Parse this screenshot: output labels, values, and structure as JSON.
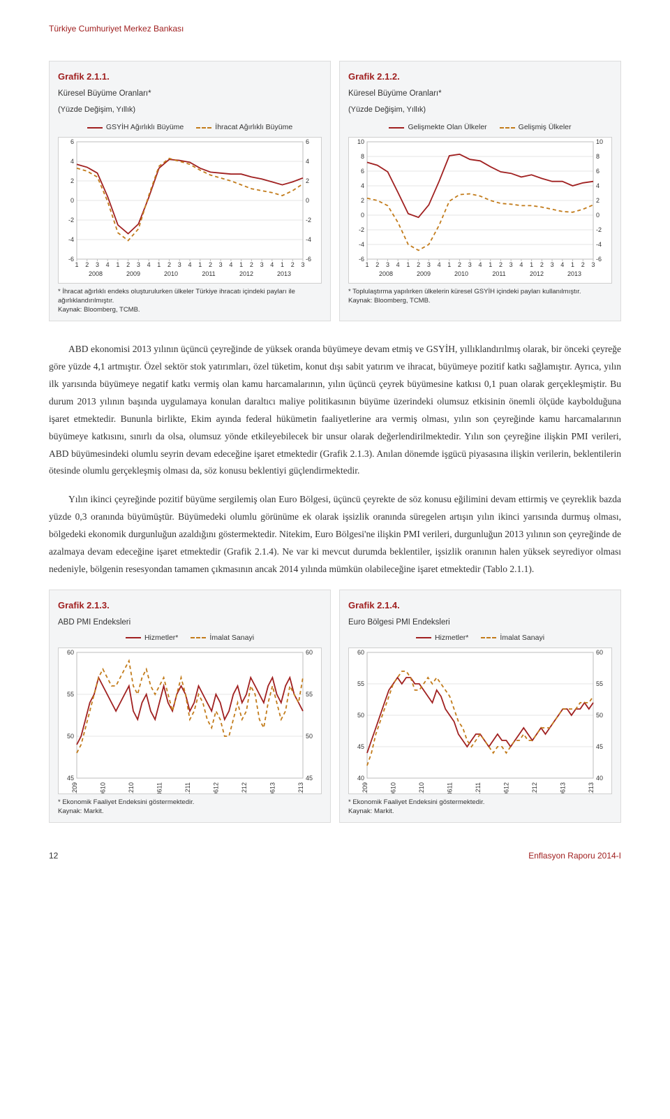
{
  "running_head": "Türkiye Cumhuriyet Merkez Bankası",
  "footer": {
    "page": "12",
    "doc": "Enflasyon Raporu 2014-I"
  },
  "chart211": {
    "type": "line",
    "title": "Grafik 2.1.1.",
    "subtitle": "Küresel Büyüme Oranları*",
    "subtitle2": "(Yüzde Değişim, Yıllık)",
    "legend": [
      {
        "label": "GSYİH Ağırlıklı Büyüme",
        "color": "#a02020",
        "dashed": false
      },
      {
        "label": "İhracat Ağırlıklı Büyüme",
        "color": "#c27b1a",
        "dashed": true
      }
    ],
    "ylim": [
      -6,
      6
    ],
    "ytick_step": 2,
    "x_labels_minor": [
      "1",
      "2",
      "3",
      "4",
      "1",
      "2",
      "3",
      "4",
      "1",
      "2",
      "3",
      "4",
      "1",
      "2",
      "3",
      "4",
      "1",
      "2",
      "3",
      "4",
      "1",
      "2",
      "3"
    ],
    "x_labels_major": [
      "2008",
      "2009",
      "2010",
      "2011",
      "2012",
      "2013"
    ],
    "series": [
      {
        "color": "#a02020",
        "dashed": false,
        "values": [
          3.7,
          3.4,
          2.8,
          0.4,
          -2.5,
          -3.4,
          -2.4,
          0.3,
          3.3,
          4.2,
          4.1,
          3.9,
          3.3,
          2.9,
          2.8,
          2.7,
          2.7,
          2.4,
          2.2,
          1.9,
          1.6,
          1.9,
          2.3
        ]
      },
      {
        "color": "#c27b1a",
        "dashed": true,
        "values": [
          3.3,
          3.0,
          2.4,
          -0.1,
          -3.3,
          -4.1,
          -2.9,
          0.5,
          3.5,
          4.3,
          4.0,
          3.7,
          3.1,
          2.6,
          2.3,
          2.0,
          1.6,
          1.2,
          1.0,
          0.8,
          0.5,
          1.0,
          1.7
        ]
      }
    ],
    "footnote": "* İhracat ağırlıklı endeks oluşturulurken ülkeler Türkiye ihracatı içindeki payları ile ağırlıklandırılmıştır.\nKaynak: Bloomberg, TCMB.",
    "background_color": "#ffffff",
    "grid_color": "#e4e4e4",
    "label_fontsize": 9
  },
  "chart212": {
    "type": "line",
    "title": "Grafik 2.1.2.",
    "subtitle": "Küresel Büyüme Oranları*",
    "subtitle2": "(Yüzde Değişim, Yıllık)",
    "legend": [
      {
        "label": "Gelişmekte Olan Ülkeler",
        "color": "#a02020",
        "dashed": false
      },
      {
        "label": "Gelişmiş Ülkeler",
        "color": "#c27b1a",
        "dashed": true
      }
    ],
    "ylim": [
      -6,
      10
    ],
    "ytick_step": 2,
    "x_labels_minor": [
      "1",
      "2",
      "3",
      "4",
      "1",
      "2",
      "3",
      "4",
      "1",
      "2",
      "3",
      "4",
      "1",
      "2",
      "3",
      "4",
      "1",
      "2",
      "3",
      "4",
      "1",
      "2",
      "3"
    ],
    "x_labels_major": [
      "2008",
      "2009",
      "2010",
      "2011",
      "2012",
      "2013"
    ],
    "series": [
      {
        "color": "#a02020",
        "dashed": false,
        "values": [
          7.2,
          6.8,
          5.9,
          3.1,
          0.2,
          -0.3,
          1.4,
          4.6,
          8.1,
          8.3,
          7.6,
          7.4,
          6.6,
          5.9,
          5.7,
          5.2,
          5.5,
          5.0,
          4.6,
          4.6,
          4.0,
          4.4,
          4.6
        ]
      },
      {
        "color": "#c27b1a",
        "dashed": true,
        "values": [
          2.3,
          2.0,
          1.3,
          -1.0,
          -4.0,
          -4.8,
          -4.0,
          -1.4,
          1.9,
          2.8,
          2.9,
          2.6,
          2.0,
          1.6,
          1.5,
          1.3,
          1.3,
          1.1,
          0.8,
          0.5,
          0.4,
          0.8,
          1.4
        ]
      }
    ],
    "footnote": "* Toplulaştırma yapılırken ülkelerin küresel GSYİH içindeki payları kullanılmıştır.\nKaynak: Bloomberg, TCMB.",
    "background_color": "#ffffff",
    "grid_color": "#e4e4e4",
    "label_fontsize": 9
  },
  "para1": "ABD ekonomisi 2013 yılının üçüncü çeyreğinde de yüksek oranda büyümeye devam etmiş ve GSYİH, yıllıklandırılmış olarak, bir önceki çeyreğe göre yüzde 4,1 artmıştır. Özel sektör stok yatırımları, özel tüketim, konut dışı sabit yatırım ve ihracat, büyümeye pozitif katkı sağlamıştır. Ayrıca, yılın ilk yarısında büyümeye negatif katkı vermiş olan kamu harcamalarının, yılın üçüncü çeyrek büyümesine katkısı 0,1 puan olarak gerçekleşmiştir. Bu durum 2013 yılının başında uygulamaya konulan daraltıcı maliye politikasının büyüme üzerindeki olumsuz etkisinin önemli ölçüde kaybolduğuna işaret etmektedir. Bununla birlikte, Ekim ayında federal hükümetin faaliyetlerine ara vermiş olması, yılın son çeyreğinde kamu harcamalarının büyümeye katkısını, sınırlı da olsa, olumsuz yönde etkileyebilecek bir unsur olarak değerlendirilmektedir. Yılın son çeyreğine ilişkin PMI verileri, ABD büyümesindeki olumlu seyrin devam edeceğine işaret etmektedir (Grafik 2.1.3). Anılan dönemde işgücü piyasasına ilişkin verilerin, beklentilerin ötesinde olumlu gerçekleşmiş olması da, söz konusu beklentiyi güçlendirmektedir.",
  "para2": "Yılın ikinci çeyreğinde pozitif büyüme sergilemiş olan Euro Bölgesi, üçüncü çeyrekte de söz konusu eğilimini devam ettirmiş ve çeyreklik bazda yüzde 0,3 oranında büyümüştür. Büyümedeki olumlu görünüme ek olarak işsizlik oranında süregelen artışın yılın ikinci yarısında durmuş olması, bölgedeki ekonomik durgunluğun azaldığını göstermektedir. Nitekim, Euro Bölgesi'ne ilişkin PMI verileri, durgunluğun 2013 yılının son çeyreğinde de azalmaya devam edeceğine işaret etmektedir (Grafik 2.1.4). Ne var ki mevcut durumda beklentiler, işsizlik oranının halen yüksek seyrediyor olması nedeniyle, bölgenin resesyondan tamamen çıkmasının ancak 2014 yılında mümkün olabileceğine işaret etmektedir (Tablo 2.1.1).",
  "chart213": {
    "type": "line",
    "title": "Grafik 2.1.3.",
    "subtitle": "ABD PMI Endeksleri",
    "legend": [
      {
        "label": "Hizmetler*",
        "color": "#a02020",
        "dashed": false
      },
      {
        "label": "İmalat Sanayi",
        "color": "#c27b1a",
        "dashed": true
      }
    ],
    "ylim": [
      45,
      60
    ],
    "ytick_step": 5,
    "x_labels": [
      "1209",
      "0610",
      "1210",
      "0611",
      "1211",
      "0612",
      "1212",
      "0613",
      "1213"
    ],
    "series": [
      {
        "color": "#a02020",
        "dashed": false,
        "values": [
          49,
          50,
          52,
          54,
          55,
          57,
          56,
          55,
          54,
          53,
          54,
          55,
          56,
          53,
          52,
          54,
          55,
          53,
          52,
          54,
          56,
          54,
          53,
          55,
          56,
          55,
          53,
          54,
          56,
          55,
          54,
          53,
          55,
          54,
          52,
          53,
          55,
          56,
          54,
          55,
          57,
          56,
          55,
          54,
          56,
          57,
          55,
          54,
          56,
          57,
          55,
          54,
          53
        ]
      },
      {
        "color": "#c27b1a",
        "dashed": true,
        "values": [
          48,
          49,
          51,
          53,
          55,
          57,
          58,
          57,
          56,
          56,
          57,
          58,
          59,
          56,
          55,
          57,
          58,
          56,
          55,
          56,
          57,
          55,
          53,
          55,
          57,
          55,
          52,
          53,
          55,
          54,
          52,
          51,
          53,
          52,
          50,
          50,
          52,
          54,
          52,
          53,
          56,
          55,
          52,
          51,
          54,
          56,
          54,
          52,
          53,
          56,
          55,
          54,
          57
        ]
      }
    ],
    "footnote": "* Ekonomik Faaliyet Endeksini göstermektedir.\nKaynak: Markit.",
    "label_fontsize": 9
  },
  "chart214": {
    "type": "line",
    "title": "Grafik 2.1.4.",
    "subtitle": "Euro Bölgesi PMI Endeksleri",
    "legend": [
      {
        "label": "Hizmetler*",
        "color": "#a02020",
        "dashed": false
      },
      {
        "label": "İmalat Sanayi",
        "color": "#c27b1a",
        "dashed": true
      }
    ],
    "ylim": [
      40,
      60
    ],
    "ytick_step": 5,
    "x_labels": [
      "1209",
      "0610",
      "1210",
      "0611",
      "1211",
      "0612",
      "1212",
      "0613",
      "1213"
    ],
    "series": [
      {
        "color": "#a02020",
        "dashed": false,
        "values": [
          44,
          46,
          48,
          50,
          52,
          54,
          55,
          56,
          55,
          56,
          56,
          55,
          55,
          54,
          53,
          52,
          54,
          53,
          51,
          50,
          49,
          47,
          46,
          45,
          46,
          47,
          47,
          46,
          45,
          46,
          47,
          46,
          46,
          45,
          46,
          47,
          48,
          47,
          46,
          47,
          48,
          47,
          48,
          49,
          50,
          51,
          51,
          50,
          51,
          51,
          52,
          51,
          52
        ]
      },
      {
        "color": "#c27b1a",
        "dashed": true,
        "values": [
          42,
          44,
          47,
          49,
          51,
          53,
          55,
          56,
          57,
          57,
          56,
          54,
          54,
          55,
          56,
          55,
          56,
          55,
          54,
          53,
          51,
          49,
          48,
          46,
          45,
          46,
          47,
          46,
          45,
          44,
          45,
          45,
          44,
          45,
          46,
          46,
          47,
          46,
          46,
          47,
          48,
          48,
          48,
          49,
          50,
          51,
          51,
          51,
          51,
          52,
          52,
          52,
          53
        ]
      }
    ],
    "footnote": "* Ekonomik Faaliyet Endeksini göstermektedir.\nKaynak: Markit.",
    "label_fontsize": 9
  }
}
